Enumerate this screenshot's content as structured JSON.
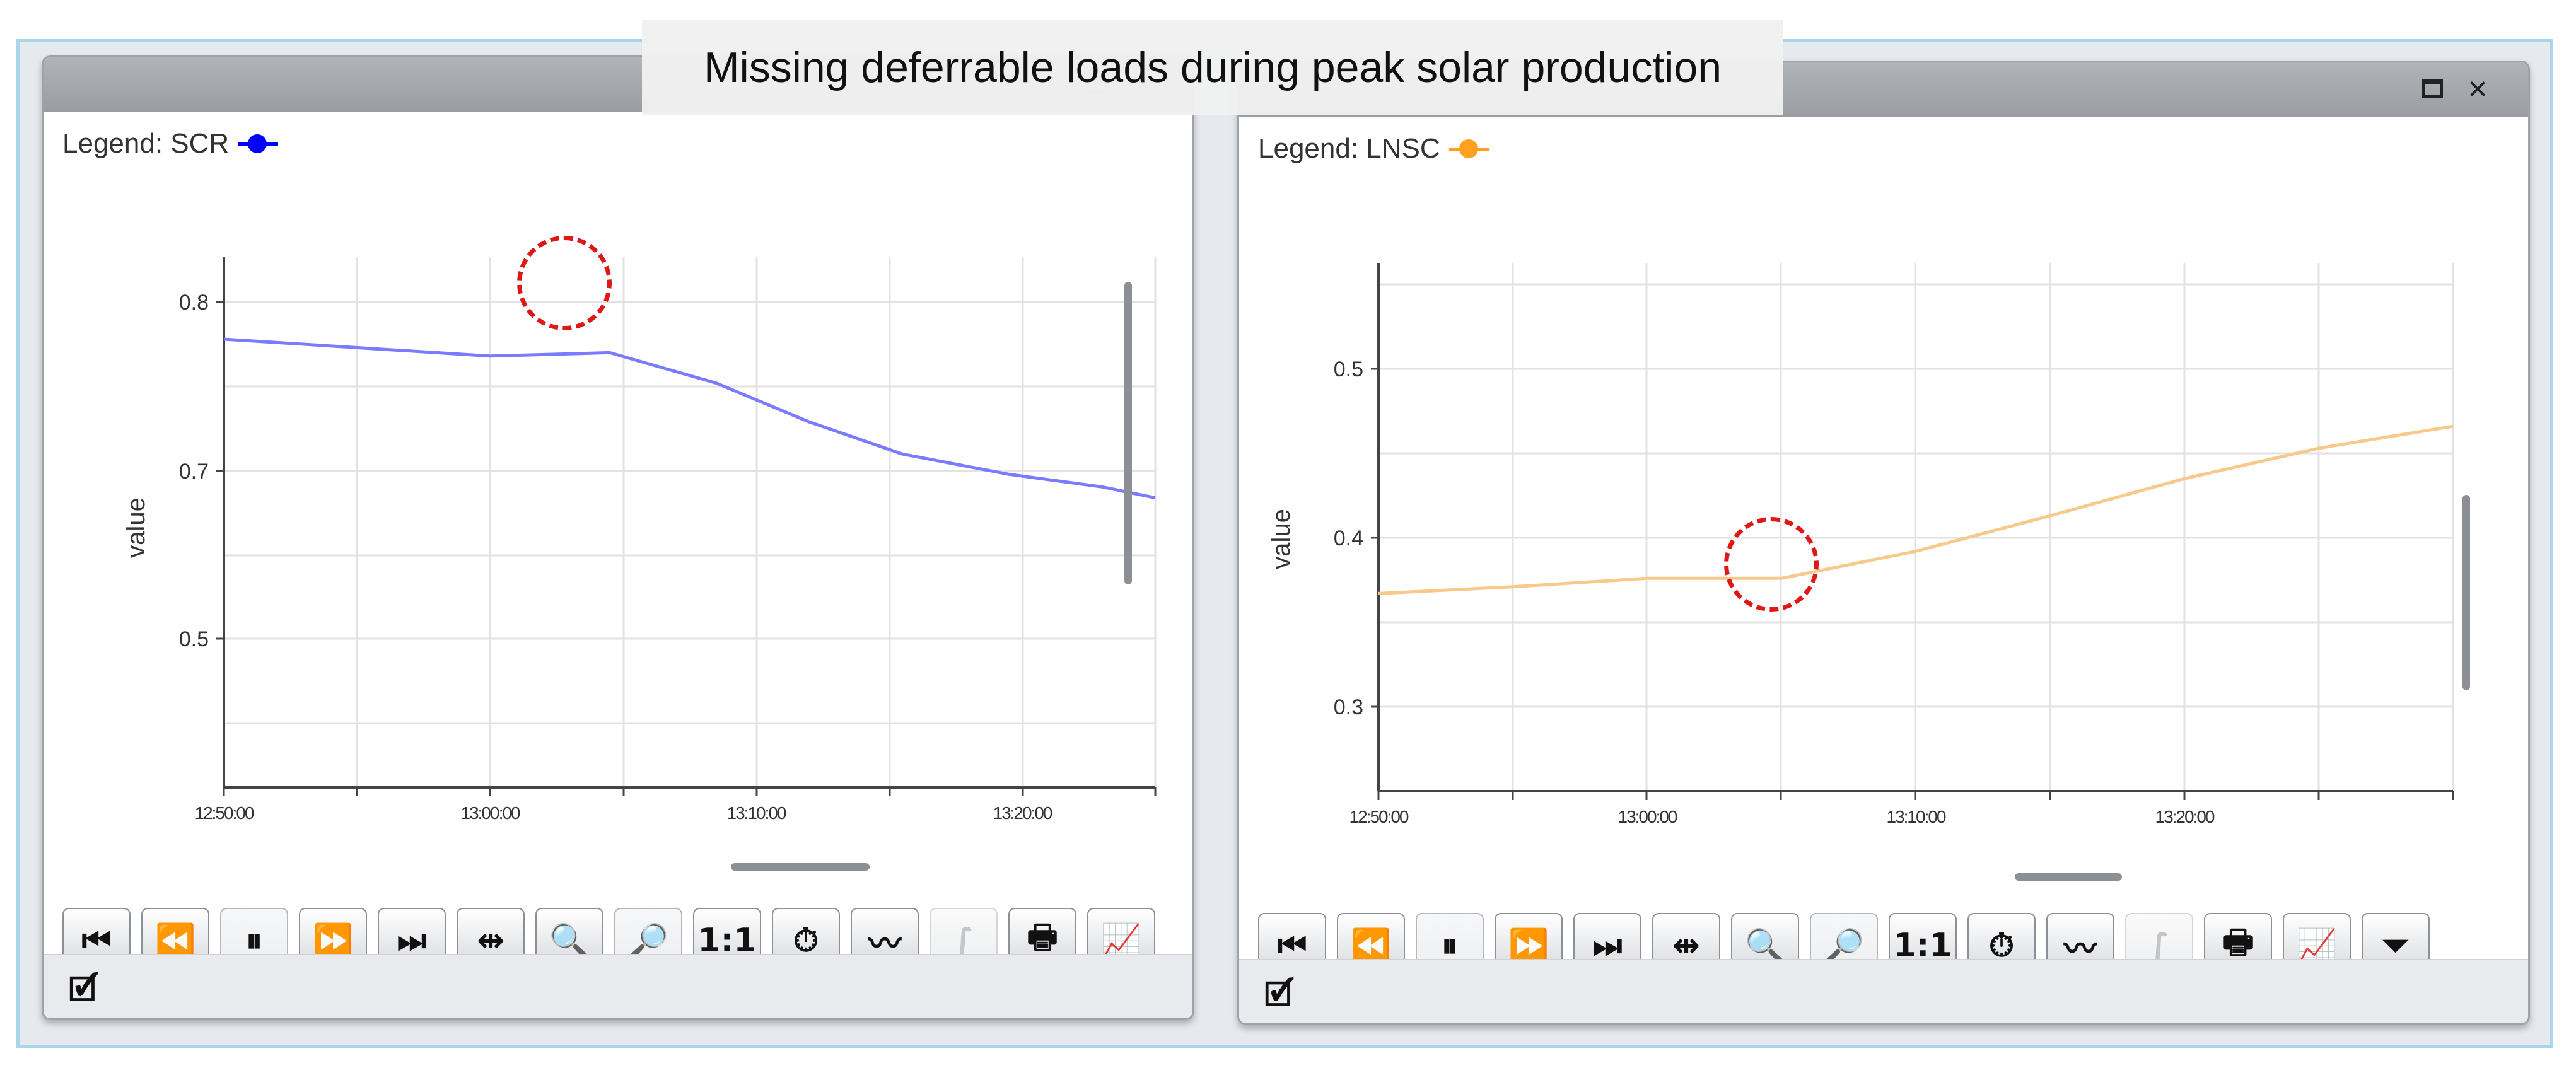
{
  "annotation": {
    "text": "Missing deferrable loads during peak solar production"
  },
  "windows": [
    {
      "legend_label": "Legend: SCR",
      "ylabel": "value",
      "color": "#7b7bff",
      "legend_color": "#0000ff",
      "toolbar_items": [
        "skip-to-start",
        "rewind",
        "pause",
        "fast-forward",
        "skip-to-end",
        "pan",
        "zoom-in",
        "zoom-box",
        "actual-size",
        "stopwatch",
        "trend",
        "integral",
        "print",
        "export-chart"
      ]
    },
    {
      "legend_label": "Legend: LNSC",
      "ylabel": "value",
      "color": "#f8c98a",
      "legend_color": "#ffa020",
      "toolbar_items": [
        "skip-to-start",
        "rewind",
        "pause",
        "fast-forward",
        "skip-to-end",
        "pan",
        "zoom-in",
        "zoom-box",
        "actual-size",
        "stopwatch",
        "trend",
        "integral",
        "print",
        "export-chart",
        "filter"
      ]
    }
  ],
  "chart_data": [
    {
      "type": "line",
      "title": "",
      "xlabel": "",
      "ylabel": "value",
      "x_ticks": [
        "12:50:00",
        "13:00:00",
        "13:10:00",
        "13:20:00"
      ],
      "y_ticks": [
        "0.8",
        "0.7",
        "0.5"
      ],
      "series": [
        {
          "name": "SCR",
          "x": [
            "12:50:00",
            "13:00:00",
            "13:04:30",
            "13:08:30",
            "13:12:00",
            "13:15:30",
            "13:19:30",
            "13:23:00",
            "13:25:00"
          ],
          "values": [
            0.778,
            0.768,
            0.77,
            0.752,
            0.729,
            0.71,
            0.696,
            0.681,
            0.668
          ]
        }
      ],
      "grid": true,
      "highlight_x": "13:04:30"
    },
    {
      "type": "line",
      "title": "",
      "xlabel": "",
      "ylabel": "value",
      "x_ticks": [
        "12:50:00",
        "13:00:00",
        "13:10:00",
        "13:20:00"
      ],
      "y_ticks": [
        "0.5",
        "0.4",
        "0.3"
      ],
      "ylim": [
        0.29,
        0.59
      ],
      "series": [
        {
          "name": "LNSC",
          "x": [
            "12:50:00",
            "12:55:00",
            "13:00:00",
            "13:05:00",
            "13:10:00",
            "13:15:00",
            "13:20:00",
            "13:25:00",
            "13:30:00"
          ],
          "values": [
            0.367,
            0.371,
            0.376,
            0.376,
            0.392,
            0.413,
            0.435,
            0.453,
            0.466
          ]
        }
      ],
      "grid": true,
      "highlight_x": "13:05:00"
    }
  ]
}
